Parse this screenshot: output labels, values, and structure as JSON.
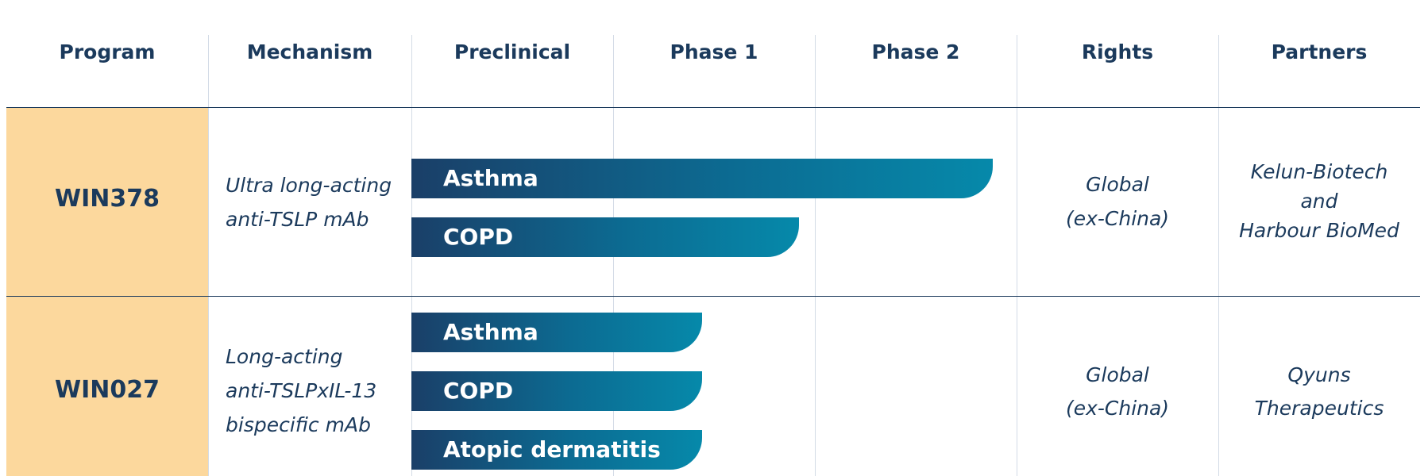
{
  "headers": {
    "program": "Program",
    "mechanism": "Mechanism",
    "preclinical": "Preclinical",
    "phase1": "Phase 1",
    "phase2": "Phase 2",
    "rights": "Rights",
    "partners": "Partners"
  },
  "rows": [
    {
      "program": "WIN378",
      "mechanism": [
        "Ultra long-acting",
        "anti-TSLP mAb"
      ],
      "indications": [
        {
          "label": "Asthma",
          "progress": 0.96
        },
        {
          "label": "COPD",
          "progress": 0.64
        }
      ],
      "rights": [
        "Global",
        "(ex-China)"
      ],
      "partners": [
        "Kelun-Biotech",
        "and",
        "Harbour BioMed"
      ]
    },
    {
      "program": "WIN027",
      "mechanism": [
        "Long-acting",
        "anti-TSLPxIL-13",
        "bispecific mAb"
      ],
      "indications": [
        {
          "label": "Asthma",
          "progress": 0.48
        },
        {
          "label": "COPD",
          "progress": 0.48
        },
        {
          "label": "Atopic dermatitis",
          "progress": 0.48
        }
      ],
      "rights": [
        "Global",
        "(ex-China)"
      ],
      "partners": [
        "Qyuns",
        "Therapeutics"
      ]
    }
  ],
  "colors": {
    "navy": "#1b3a5c",
    "program_fill": "#fcd89d",
    "bar_start": "#1a3f68",
    "bar_end": "#0689aa",
    "grid": "#d3dbe6"
  }
}
